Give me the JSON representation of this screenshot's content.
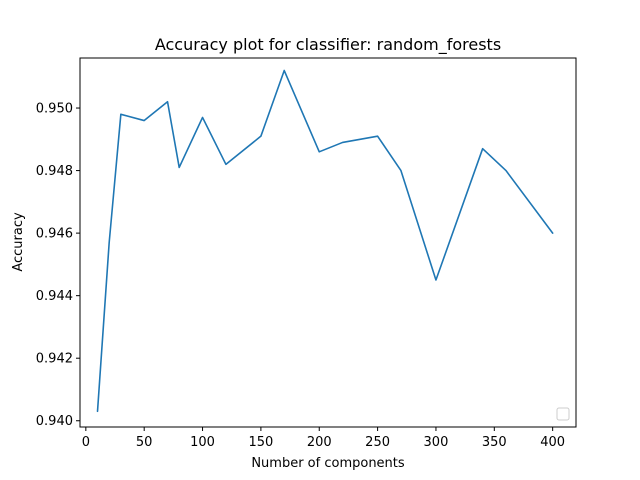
{
  "chart_data": {
    "type": "line",
    "title": "Accuracy plot for classifier: random_forests",
    "xlabel": "Number of components",
    "ylabel": "Accuracy",
    "xlim": [
      -5,
      420
    ],
    "ylim": [
      0.9398,
      0.9516
    ],
    "xticks": [
      0,
      50,
      100,
      150,
      200,
      250,
      300,
      350,
      400
    ],
    "yticks": [
      0.94,
      0.942,
      0.944,
      0.946,
      0.948,
      0.95
    ],
    "ytick_labels": [
      "0.940",
      "0.942",
      "0.944",
      "0.946",
      "0.948",
      "0.950"
    ],
    "grid": false,
    "legend": "lower-right (empty)",
    "series": [
      {
        "color": "#1f77b4",
        "x": [
          10,
          20,
          30,
          50,
          70,
          80,
          100,
          120,
          150,
          170,
          200,
          220,
          250,
          270,
          300,
          340,
          360,
          400
        ],
        "y": [
          0.9403,
          0.9457,
          0.9498,
          0.9496,
          0.9502,
          0.9481,
          0.9497,
          0.9482,
          0.9491,
          0.9512,
          0.9486,
          0.9489,
          0.9491,
          0.948,
          0.9445,
          0.9487,
          0.948,
          0.946
        ]
      }
    ]
  }
}
